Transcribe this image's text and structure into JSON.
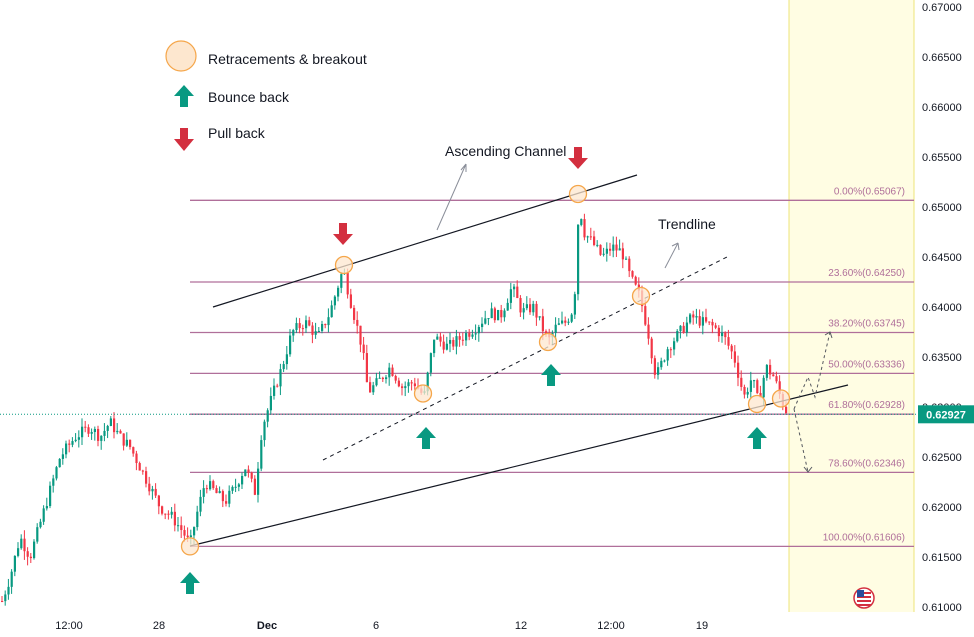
{
  "chart_data": {
    "type": "candlestick",
    "symbol_currency": "USD",
    "ylim": [
      0.6095,
      0.6707
    ],
    "y_ticks": [
      "0.61000",
      "0.61500",
      "0.62000",
      "0.62500",
      "0.63000",
      "0.63500",
      "0.64000",
      "0.64500",
      "0.65000",
      "0.65500",
      "0.66000",
      "0.66500",
      "0.67000"
    ],
    "x_ticks": [
      "12:00",
      "28",
      "Dec",
      "6",
      "12",
      "12:00",
      "19"
    ],
    "current_price": "0.62927",
    "current_price_color": "#089981",
    "up_color": "#089981",
    "down_color": "#f23645",
    "fib_color": "#b06f9a",
    "fib_levels": [
      {
        "label": "0.00%(0.65067)",
        "value": 0.65067
      },
      {
        "label": "23.60%(0.64250)",
        "value": 0.6425
      },
      {
        "label": "38.20%(0.63745)",
        "value": 0.63745
      },
      {
        "label": "50.00%(0.63336)",
        "value": 0.63336
      },
      {
        "label": "61.80%(0.62928)",
        "value": 0.62928
      },
      {
        "label": "78.60%(0.62346)",
        "value": 0.62346
      },
      {
        "label": "100.00%(0.61606)",
        "value": 0.61606
      }
    ],
    "price_path": [
      {
        "t": 0,
        "p": 0.61
      },
      {
        "t": 10,
        "p": 0.613
      },
      {
        "t": 20,
        "p": 0.617
      },
      {
        "t": 30,
        "p": 0.615
      },
      {
        "t": 45,
        "p": 0.62
      },
      {
        "t": 60,
        "p": 0.625
      },
      {
        "t": 75,
        "p": 0.627
      },
      {
        "t": 90,
        "p": 0.628
      },
      {
        "t": 100,
        "p": 0.627
      },
      {
        "t": 110,
        "p": 0.6285
      },
      {
        "t": 120,
        "p": 0.627
      },
      {
        "t": 130,
        "p": 0.626
      },
      {
        "t": 145,
        "p": 0.623
      },
      {
        "t": 160,
        "p": 0.62
      },
      {
        "t": 172,
        "p": 0.619
      },
      {
        "t": 183,
        "p": 0.6175
      },
      {
        "t": 190,
        "p": 0.6162
      },
      {
        "t": 196,
        "p": 0.619
      },
      {
        "t": 205,
        "p": 0.6225
      },
      {
        "t": 215,
        "p": 0.6215
      },
      {
        "t": 225,
        "p": 0.6205
      },
      {
        "t": 235,
        "p": 0.622
      },
      {
        "t": 245,
        "p": 0.624
      },
      {
        "t": 255,
        "p": 0.6215
      },
      {
        "t": 262,
        "p": 0.628
      },
      {
        "t": 272,
        "p": 0.631
      },
      {
        "t": 282,
        "p": 0.634
      },
      {
        "t": 292,
        "p": 0.6375
      },
      {
        "t": 305,
        "p": 0.6385
      },
      {
        "t": 318,
        "p": 0.637
      },
      {
        "t": 330,
        "p": 0.6395
      },
      {
        "t": 343,
        "p": 0.6438
      },
      {
        "t": 352,
        "p": 0.64
      },
      {
        "t": 362,
        "p": 0.636
      },
      {
        "t": 368,
        "p": 0.6315
      },
      {
        "t": 378,
        "p": 0.6325
      },
      {
        "t": 390,
        "p": 0.634
      },
      {
        "t": 402,
        "p": 0.632
      },
      {
        "t": 414,
        "p": 0.6325
      },
      {
        "t": 424,
        "p": 0.631
      },
      {
        "t": 434,
        "p": 0.637
      },
      {
        "t": 448,
        "p": 0.636
      },
      {
        "t": 462,
        "p": 0.637
      },
      {
        "t": 476,
        "p": 0.638
      },
      {
        "t": 490,
        "p": 0.6395
      },
      {
        "t": 500,
        "p": 0.639
      },
      {
        "t": 512,
        "p": 0.642
      },
      {
        "t": 522,
        "p": 0.6395
      },
      {
        "t": 533,
        "p": 0.64
      },
      {
        "t": 542,
        "p": 0.638
      },
      {
        "t": 548,
        "p": 0.6365
      },
      {
        "t": 556,
        "p": 0.638
      },
      {
        "t": 566,
        "p": 0.6385
      },
      {
        "t": 574,
        "p": 0.64
      },
      {
        "t": 579,
        "p": 0.6505
      },
      {
        "t": 584,
        "p": 0.6475
      },
      {
        "t": 592,
        "p": 0.6465
      },
      {
        "t": 602,
        "p": 0.645
      },
      {
        "t": 612,
        "p": 0.646
      },
      {
        "t": 622,
        "p": 0.6455
      },
      {
        "t": 630,
        "p": 0.643
      },
      {
        "t": 640,
        "p": 0.641
      },
      {
        "t": 648,
        "p": 0.6375
      },
      {
        "t": 656,
        "p": 0.633
      },
      {
        "t": 668,
        "p": 0.636
      },
      {
        "t": 680,
        "p": 0.6375
      },
      {
        "t": 692,
        "p": 0.639
      },
      {
        "t": 702,
        "p": 0.6385
      },
      {
        "t": 714,
        "p": 0.638
      },
      {
        "t": 724,
        "p": 0.637
      },
      {
        "t": 734,
        "p": 0.635
      },
      {
        "t": 744,
        "p": 0.631
      },
      {
        "t": 752,
        "p": 0.633
      },
      {
        "t": 758,
        "p": 0.6305
      },
      {
        "t": 766,
        "p": 0.634
      },
      {
        "t": 774,
        "p": 0.633
      },
      {
        "t": 782,
        "p": 0.6305
      },
      {
        "t": 788,
        "p": 0.62927
      }
    ],
    "markers": [
      {
        "type": "circle",
        "t": 190,
        "p": 0.61606
      },
      {
        "type": "circle",
        "t": 344,
        "p": 0.6442
      },
      {
        "type": "circle",
        "t": 423,
        "p": 0.63135
      },
      {
        "type": "circle",
        "t": 548,
        "p": 0.6365
      },
      {
        "type": "circle",
        "t": 578,
        "p": 0.6513
      },
      {
        "type": "circle",
        "t": 641,
        "p": 0.6411
      },
      {
        "type": "circle",
        "t": 757,
        "p": 0.6303
      },
      {
        "type": "circle",
        "t": 781,
        "p": 0.63085
      },
      {
        "type": "arrow-up",
        "t": 190,
        "p": 0.6125
      },
      {
        "type": "arrow-up",
        "t": 426,
        "p": 0.627
      },
      {
        "type": "arrow-up",
        "t": 551,
        "p": 0.6333
      },
      {
        "type": "arrow-up",
        "t": 757,
        "p": 0.627
      },
      {
        "type": "arrow-down",
        "t": 343,
        "p": 0.6472
      },
      {
        "type": "arrow-down",
        "t": 578,
        "p": 0.6548
      }
    ],
    "channel_upper": [
      {
        "t": 213,
        "p": 0.64
      },
      {
        "t": 637,
        "p": 0.6532
      }
    ],
    "channel_lower": [
      {
        "t": 190,
        "p": 0.6161
      },
      {
        "t": 848,
        "p": 0.6322
      }
    ],
    "trendline": [
      {
        "t": 323,
        "p": 0.6247
      },
      {
        "t": 727,
        "p": 0.645
      }
    ],
    "forecast_up": [
      {
        "t": 794,
        "p": 0.6298
      },
      {
        "t": 808,
        "p": 0.633
      },
      {
        "t": 815,
        "p": 0.631
      },
      {
        "t": 830,
        "p": 0.6375
      }
    ],
    "forecast_down": [
      {
        "t": 794,
        "p": 0.6298
      },
      {
        "t": 808,
        "p": 0.6235
      }
    ]
  },
  "legend": {
    "items": [
      {
        "icon": "retracement-circle-icon",
        "label": "Retracements & breakout"
      },
      {
        "icon": "bounce-arrow-up-icon",
        "label": "Bounce back"
      },
      {
        "icon": "pullback-arrow-down-icon",
        "label": "Pull back"
      }
    ]
  },
  "annotations": {
    "channel_label": "Ascending Channel",
    "trendline_label": "Trendline"
  },
  "colors": {
    "highlight_zone": "#fffde3",
    "axis_text": "#131722",
    "bounce_arrow": "#089981",
    "pull_arrow": "#d32f3f",
    "circle_fill": "#fde7cf",
    "circle_stroke": "#f5a64a"
  }
}
